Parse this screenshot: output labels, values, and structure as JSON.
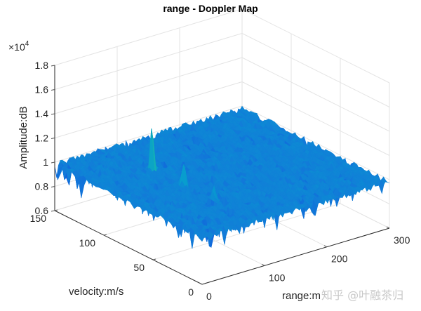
{
  "chart_data": {
    "type": "surface",
    "title": "range - Doppler Map",
    "xlabel": "range:m",
    "ylabel": "velocity:m/s",
    "zlabel": "Amplitude:dB",
    "z_exponent_label": "×10",
    "z_exponent": "4",
    "xlim": [
      0,
      300
    ],
    "ylim": [
      0,
      150
    ],
    "zlim": [
      0.6,
      1.8
    ],
    "x_ticks": [
      "0",
      "100",
      "200",
      "300"
    ],
    "y_ticks": [
      "0",
      "50",
      "100",
      "150"
    ],
    "z_ticks": [
      "0.6",
      "0.8",
      "1",
      "1.2",
      "1.4",
      "1.6",
      "1.8"
    ],
    "grid": true,
    "colormap": "parula",
    "noise_floor": 0.98,
    "peaks": [
      {
        "range": 85,
        "velocity": 105,
        "amplitude": 1.35
      },
      {
        "range": 85,
        "velocity": 73,
        "amplitude": 1.22
      },
      {
        "range": 90,
        "velocity": 45,
        "amplitude": 1.15
      }
    ]
  },
  "watermark": "知乎 @叶融茶归"
}
